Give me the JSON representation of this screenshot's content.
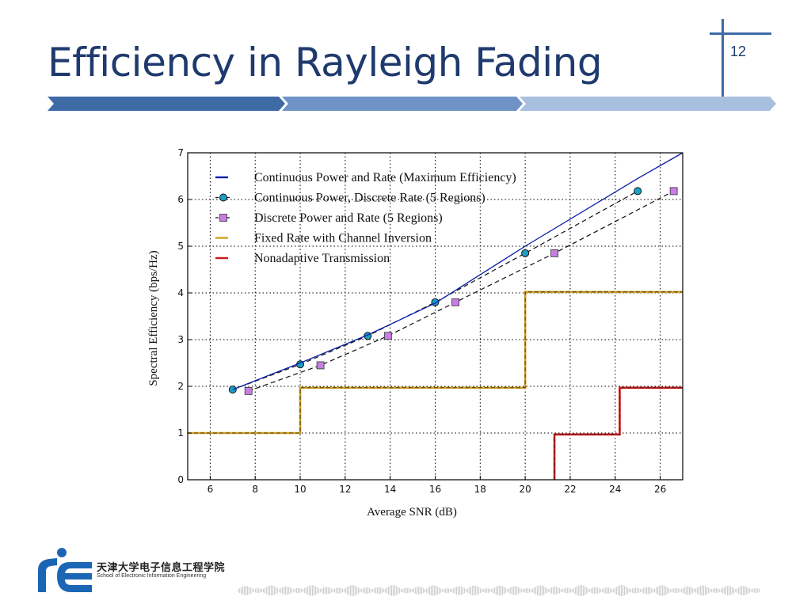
{
  "slide": {
    "title": "Efficiency in Rayleigh Fading",
    "number": "12",
    "logo_text_cn": "天津大学电子信息工程学院",
    "logo_text_en": "School of Electronic Information Engineering",
    "colors": {
      "title": "#1f3a6e",
      "banner_dark": "#3e6aa6",
      "banner_mid": "#6f93c6",
      "banner_light": "#a9bfdf",
      "logo_blue": "#1a66b5"
    }
  },
  "chart_data": {
    "type": "line",
    "xlabel": "Average SNR (dB)",
    "ylabel": "Spectral Efficiency (bps/Hz)",
    "xlim": [
      5,
      27
    ],
    "ylim": [
      0,
      7
    ],
    "xticks": [
      6,
      8,
      10,
      12,
      14,
      16,
      18,
      20,
      22,
      24,
      26
    ],
    "yticks": [
      0,
      1,
      2,
      3,
      4,
      5,
      6,
      7
    ],
    "grid": true,
    "legend_position": "top-left",
    "series": [
      {
        "name": "Continuous Power and Rate (Maximum Efficiency)",
        "style": "solid",
        "color": "#0b1fa8",
        "x": [
          7,
          10,
          13,
          16,
          20,
          25,
          27
        ],
        "y": [
          1.93,
          2.5,
          3.1,
          3.78,
          5.0,
          6.45,
          7.0
        ]
      },
      {
        "name": "Continuous Power, Discrete Rate (5 Regions)",
        "style": "dashed",
        "marker": "circle",
        "color": "#111111",
        "marker_color": "#1a9fc9",
        "x": [
          7,
          10,
          13,
          16,
          20,
          25
        ],
        "y": [
          1.93,
          2.47,
          3.08,
          3.8,
          4.85,
          6.18
        ]
      },
      {
        "name": "Discrete Power and Rate (5 Regions)",
        "style": "dashed",
        "marker": "square",
        "color": "#111111",
        "marker_color": "#c77ee0",
        "x": [
          7.7,
          10.9,
          13.9,
          16.9,
          21.3,
          26.6
        ],
        "y": [
          1.9,
          2.45,
          3.08,
          3.8,
          4.85,
          6.18
        ]
      },
      {
        "name": "Fixed Rate with Channel Inversion",
        "style": "step",
        "color": "#d4a020",
        "x": [
          5,
          10,
          10,
          20,
          20,
          27
        ],
        "y": [
          1,
          1,
          1.97,
          1.97,
          4.02,
          4.02
        ]
      },
      {
        "name": "Nonadaptive Transmission",
        "style": "step",
        "color": "#d01818",
        "x": [
          21.3,
          21.3,
          24.2,
          24.2,
          27
        ],
        "y": [
          0,
          0.97,
          0.97,
          1.97,
          1.97
        ]
      }
    ]
  }
}
